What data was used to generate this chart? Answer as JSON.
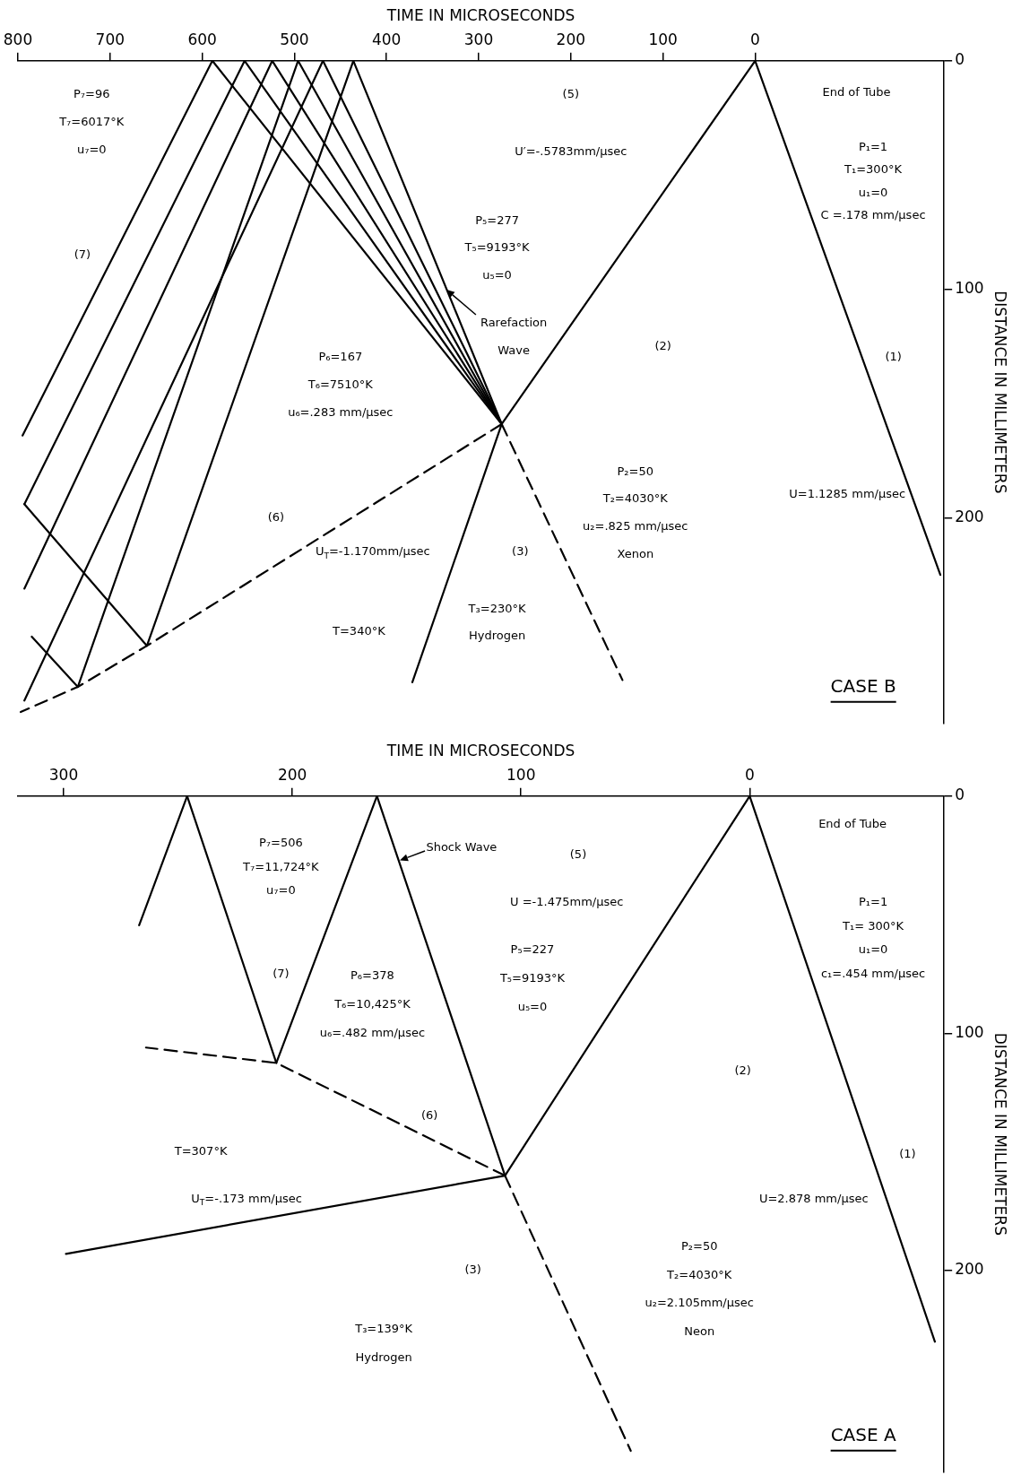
{
  "chart_data": [
    {
      "type": "line",
      "title": "CASE B",
      "xlabel": "TIME IN MICROSECONDS",
      "ylabel": "DISTANCE IN MILLIMETERS",
      "xlim": [
        800,
        -205
      ],
      "ylim": [
        290,
        0
      ],
      "xticks": [
        800,
        700,
        600,
        500,
        400,
        300,
        200,
        100,
        0
      ],
      "yticks": [
        0,
        100,
        200
      ],
      "grid": false,
      "legend": false,
      "marker": "none",
      "series": [
        {
          "color": "#000000",
          "x": [
            -201,
            0
          ],
          "values": [
            225,
            0
          ]
        },
        {
          "color": "#000000",
          "x": [
            0,
            275,
            372
          ],
          "values": [
            0,
            159,
            272
          ]
        },
        {
          "color": "#000000",
          "line_style": "dashed",
          "x": [
            275,
            144
          ],
          "values": [
            159,
            271
          ]
        },
        {
          "color": "#000000",
          "line_style": "dashed",
          "x": [
            275,
            660,
            735,
            797
          ],
          "values": [
            159,
            256,
            274,
            285
          ]
        },
        {
          "color": "#000000",
          "x": [
            275,
            436
          ],
          "values": [
            159,
            0
          ]
        },
        {
          "color": "#000000",
          "x": [
            275,
            469
          ],
          "values": [
            159,
            0
          ]
        },
        {
          "color": "#000000",
          "x": [
            275,
            496
          ],
          "values": [
            159,
            0
          ]
        },
        {
          "color": "#000000",
          "x": [
            275,
            524
          ],
          "values": [
            159,
            0
          ]
        },
        {
          "color": "#000000",
          "x": [
            275,
            554
          ],
          "values": [
            159,
            0
          ]
        },
        {
          "color": "#000000",
          "x": [
            275,
            589
          ],
          "values": [
            159,
            0
          ]
        },
        {
          "color": "#000000",
          "x": [
            589,
            795
          ],
          "values": [
            0,
            164
          ]
        },
        {
          "color": "#000000",
          "x": [
            554,
            793
          ],
          "values": [
            0,
            194
          ]
        },
        {
          "color": "#000000",
          "x": [
            524,
            793
          ],
          "values": [
            0,
            231
          ]
        },
        {
          "color": "#000000",
          "x": [
            496,
            735
          ],
          "values": [
            0,
            274
          ]
        },
        {
          "color": "#000000",
          "x": [
            469,
            793
          ],
          "values": [
            0,
            280
          ]
        },
        {
          "color": "#000000",
          "x": [
            436,
            660
          ],
          "values": [
            0,
            256
          ]
        },
        {
          "color": "#000000",
          "x": [
            660,
            793
          ],
          "values": [
            256,
            194
          ]
        },
        {
          "color": "#000000",
          "x": [
            735,
            785
          ],
          "values": [
            274,
            252
          ]
        }
      ],
      "annotations": [
        "End of Tube",
        "P₁=1",
        "T₁=300°K",
        "u₁=0",
        "C =.178 mm/µsec",
        "(1)",
        "U=1.1285 mm/µsec",
        "(2)",
        "P₂=50",
        "T₂=4030°K",
        "u₂=.825 mm/µsec",
        "Xenon",
        "U′=-.5783mm/µsec",
        "(5)",
        "P₅=277",
        "T₅=9193°K",
        "u₅=0",
        {
          "text": "Rarefaction",
          "x": 335,
          "y": 100
        },
        "Wave",
        "(3)",
        "T₃=230°K",
        "Hydrogen",
        "U$_{T}$=-1.170mm/µsec",
        "T=340°K",
        "P₆=167",
        "T₆=7510°K",
        "u₆=.283 mm/µsec",
        "(6)",
        "P₇=96",
        "T₇=6017°K",
        "u₇=0",
        "(7)"
      ]
    },
    {
      "type": "line",
      "title": "CASE A",
      "xlabel": "TIME IN MICROSECONDS",
      "ylabel": "DISTANCE IN MILLIMETERS",
      "xlim": [
        320,
        -85
      ],
      "ylim": [
        285,
        0
      ],
      "xticks": [
        300,
        200,
        100,
        0
      ],
      "yticks": [
        0,
        100,
        200
      ],
      "grid": false,
      "legend": false,
      "marker": "none",
      "series": [
        {
          "color": "#000000",
          "x": [
            -81,
            0
          ],
          "values": [
            230,
            0
          ]
        },
        {
          "color": "#000000",
          "x": [
            0,
            107,
            299
          ],
          "values": [
            0,
            160,
            193
          ]
        },
        {
          "color": "#000000",
          "line_style": "dashed",
          "x": [
            107,
            52
          ],
          "values": [
            160,
            276
          ]
        },
        {
          "color": "#000000",
          "x": [
            107,
            163
          ],
          "values": [
            160,
            0
          ]
        },
        {
          "color": "#000000",
          "line_style": "dashed",
          "x": [
            107,
            207,
            264
          ],
          "values": [
            160,
            112.5,
            106
          ]
        },
        {
          "color": "#000000",
          "x": [
            163,
            207
          ],
          "values": [
            0,
            112.5
          ]
        },
        {
          "color": "#000000",
          "x": [
            207,
            246
          ],
          "values": [
            112.5,
            0
          ]
        },
        {
          "color": "#000000",
          "x": [
            246,
            267
          ],
          "values": [
            0,
            54.5
          ]
        }
      ],
      "annotations": [
        "End of Tube",
        "P₁=1",
        "T₁= 300°K",
        "u₁=0",
        "c₁=.454 mm/µsec",
        "(1)",
        "U=2.878 mm/µsec",
        "(2)",
        "P₂=50",
        "T₂=4030°K",
        "u₂=2.105mm/µsec",
        "Neon",
        "(5)",
        "U =-1.475mm/µsec",
        "P₅=227",
        "T₅=9193°K",
        "u₅=0",
        {
          "text": "Shock Wave",
          "x": 153,
          "y": 27
        },
        "(6)",
        "P₆=378",
        "T₆=10,425°K",
        "u₆=.482 mm/µsec",
        "(7)",
        "P₇=506",
        "T₇=11,724°K",
        "u₇=0",
        "T=307°K",
        "U$_{T}$=-.173 mm/µsec",
        "(3)",
        "T₃=139°K",
        "Hydrogen"
      ]
    }
  ]
}
